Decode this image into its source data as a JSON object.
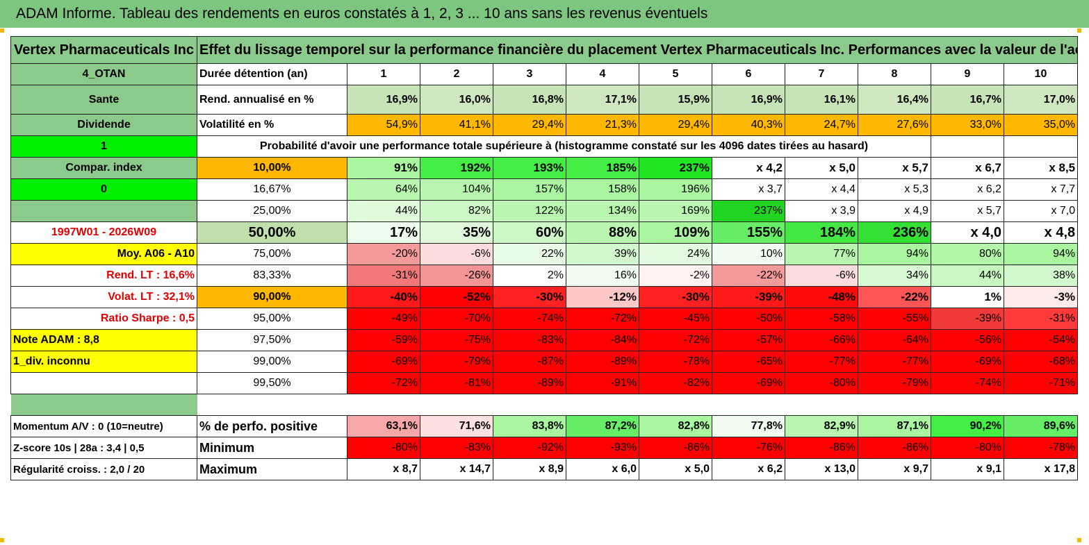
{
  "title": "ADAM Informe. Tableau des rendements en euros constatés à 1, 2, 3 ... 10 ans sans les revenus éventuels",
  "company": "Vertex Pharmaceuticals Inc",
  "description": "Effet du lissage temporel sur la performance financière du placement Vertex Pharmaceuticals Inc. Performances avec la valeur de l'actif sans prise en compte des revenus.",
  "colors": {
    "green_header": "#7dc67f",
    "bright_green": "#00ee00",
    "orange": "#ffb800",
    "yellow": "#ffff00",
    "red": "#ff0000"
  },
  "side": {
    "code": "4_OTAN",
    "sector": "Sante",
    "type": "Dividende",
    "flag1": "1",
    "compar": "Compar. index",
    "flag0": "0",
    "period": "1997W01 - 2026W09",
    "moy": "Moy. A06 - A10",
    "rend_lt": "Rend. LT :   16,6%",
    "volat_lt": "Volat. LT :   32,1%",
    "sharpe": "Ratio Sharpe :    0,5",
    "note": "Note ADAM : 8,8",
    "div": "1_div. inconnu",
    "momentum": "Momentum A/V : 0 (10=neutre)",
    "zscore": "Z-score 10s | 28a : 3,4 | 0,5",
    "regularite": "Régularité croiss. : 2,0 / 20"
  },
  "holding": {
    "label": "Durée détention (an)",
    "years": [
      "1",
      "2",
      "3",
      "4",
      "5",
      "6",
      "7",
      "8",
      "9",
      "10"
    ]
  },
  "rend": {
    "label": "Rend. annualisé en %",
    "values": [
      "16,9%",
      "16,0%",
      "16,8%",
      "17,1%",
      "15,9%",
      "16,9%",
      "16,1%",
      "16,4%",
      "16,7%",
      "17,0%"
    ]
  },
  "vol": {
    "label": "Volatilité en %",
    "values": [
      "54,9%",
      "41,1%",
      "29,4%",
      "21,3%",
      "29,4%",
      "40,3%",
      "24,7%",
      "27,6%",
      "33,0%",
      "35,0%"
    ]
  },
  "prob_title": "Probabilité d'avoir une performance totale supérieure à (histogramme constaté sur les 4096 dates tirées au hasard)",
  "prob_rows": [
    {
      "label": "10,00%",
      "values": [
        "91%",
        "192%",
        "193%",
        "185%",
        "237%",
        "x 4,2",
        "x 5,0",
        "x 5,7",
        "x 6,7",
        "x 8,5"
      ]
    },
    {
      "label": "16,67%",
      "values": [
        "64%",
        "104%",
        "157%",
        "158%",
        "196%",
        "x 3,7",
        "x 4,4",
        "x 5,3",
        "x 6,2",
        "x 7,7"
      ]
    },
    {
      "label": "25,00%",
      "values": [
        "44%",
        "82%",
        "122%",
        "134%",
        "169%",
        "237%",
        "x 3,9",
        "x 4,9",
        "x 5,7",
        "x 7,0"
      ]
    },
    {
      "label": "50,00%",
      "values": [
        "17%",
        "35%",
        "60%",
        "88%",
        "109%",
        "155%",
        "184%",
        "236%",
        "x 4,0",
        "x 4,8"
      ]
    },
    {
      "label": "75,00%",
      "values": [
        "-20%",
        "-6%",
        "22%",
        "39%",
        "24%",
        "10%",
        "77%",
        "94%",
        "80%",
        "94%"
      ]
    },
    {
      "label": "83,33%",
      "values": [
        "-31%",
        "-26%",
        "2%",
        "16%",
        "-2%",
        "-22%",
        "-6%",
        "34%",
        "44%",
        "38%"
      ]
    },
    {
      "label": "90,00%",
      "values": [
        "-40%",
        "-52%",
        "-30%",
        "-12%",
        "-30%",
        "-39%",
        "-48%",
        "-22%",
        "1%",
        "-3%"
      ]
    },
    {
      "label": "95,00%",
      "values": [
        "-49%",
        "-70%",
        "-74%",
        "-72%",
        "-45%",
        "-50%",
        "-58%",
        "-55%",
        "-39%",
        "-31%"
      ]
    },
    {
      "label": "97,50%",
      "values": [
        "-59%",
        "-75%",
        "-83%",
        "-84%",
        "-72%",
        "-57%",
        "-66%",
        "-64%",
        "-56%",
        "-54%"
      ]
    },
    {
      "label": "99,00%",
      "values": [
        "-69%",
        "-79%",
        "-87%",
        "-89%",
        "-78%",
        "-65%",
        "-77%",
        "-77%",
        "-69%",
        "-68%"
      ]
    },
    {
      "label": "99,50%",
      "values": [
        "-72%",
        "-81%",
        "-89%",
        "-91%",
        "-82%",
        "-69%",
        "-80%",
        "-79%",
        "-74%",
        "-71%"
      ]
    }
  ],
  "perf_pos": {
    "label": "% de perfo. positive",
    "values": [
      "63,1%",
      "71,6%",
      "83,8%",
      "87,2%",
      "82,8%",
      "77,8%",
      "82,9%",
      "87,1%",
      "90,2%",
      "89,6%"
    ]
  },
  "minimum": {
    "label": "Minimum",
    "values": [
      "-80%",
      "-83%",
      "-92%",
      "-93%",
      "-86%",
      "-76%",
      "-86%",
      "-86%",
      "-80%",
      "-78%"
    ]
  },
  "maximum": {
    "label": "Maximum",
    "values": [
      "x 8,7",
      "x 14,7",
      "x 8,9",
      "x 6,0",
      "x 5,0",
      "x 6,2",
      "x 13,0",
      "x 9,7",
      "x 9,1",
      "x 17,8"
    ]
  }
}
